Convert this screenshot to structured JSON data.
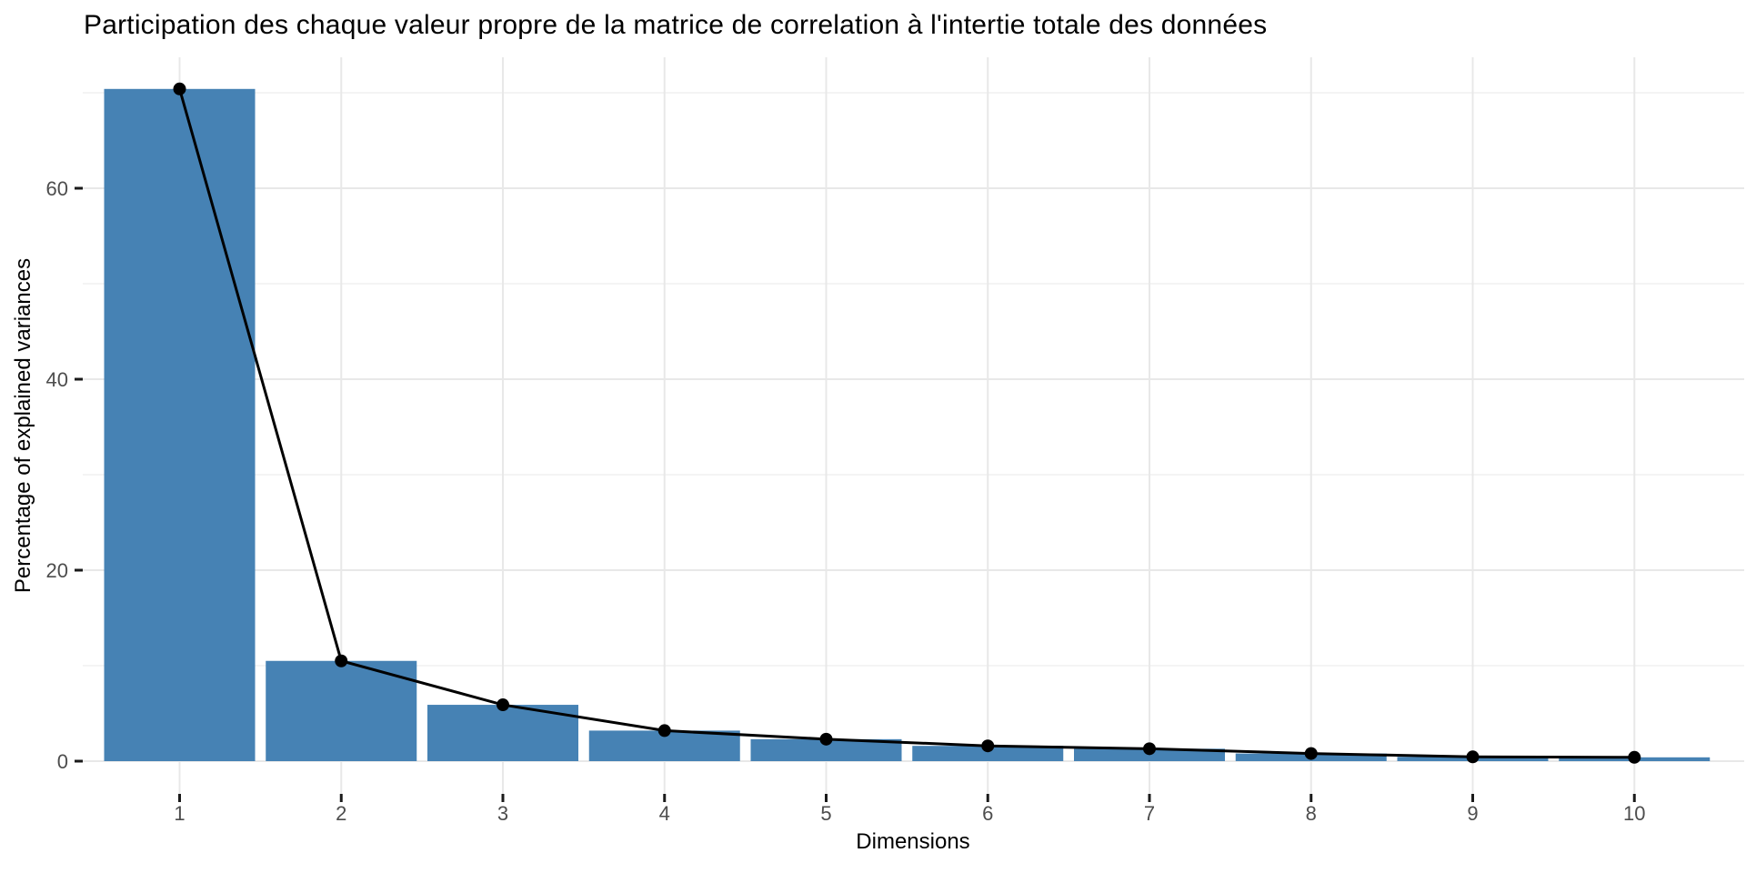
{
  "chart_data": {
    "type": "bar",
    "overlay": "line",
    "title": "Participation des chaque valeur propre de la matrice de correlation à l'intertie totale des données",
    "xlabel": "Dimensions",
    "ylabel": "Percentage of explained variances",
    "categories": [
      "1",
      "2",
      "3",
      "4",
      "5",
      "6",
      "7",
      "8",
      "9",
      "10"
    ],
    "values": [
      70.4,
      10.5,
      5.9,
      3.2,
      2.3,
      1.6,
      1.3,
      0.8,
      0.45,
      0.4
    ],
    "ylim": [
      0,
      73.9
    ],
    "yticks": [
      0,
      20,
      40,
      60
    ],
    "yminorticks": [
      10,
      30,
      50,
      70
    ],
    "grid": "on",
    "legend": "none",
    "colors": {
      "bar_fill": "#4682B4",
      "line_color": "#000000",
      "point_color": "#000000",
      "grid_major": "#E8E8E8",
      "grid_minor": "#F0F0F0",
      "tick_mark": "#1a1a1a",
      "tick_label": "#4D4D4D",
      "background": "#FFFFFF"
    }
  }
}
